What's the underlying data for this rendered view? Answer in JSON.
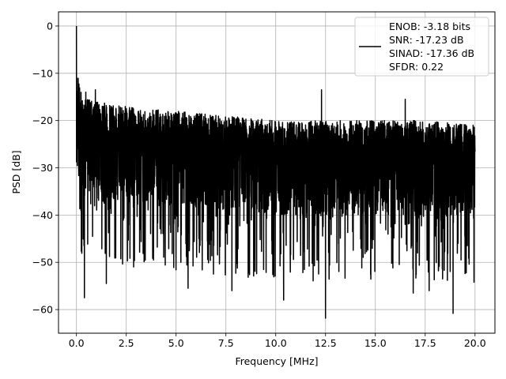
{
  "chart_data": {
    "type": "line",
    "title": "",
    "xlabel": "Frequency [MHz]",
    "ylabel": "PSD [dB]",
    "xlim": [
      -0.9,
      21.0
    ],
    "ylim": [
      -65.0,
      3.0
    ],
    "xticks": [
      0.0,
      2.5,
      5.0,
      7.5,
      10.0,
      12.5,
      15.0,
      17.5,
      20.0
    ],
    "xtick_labels": [
      "0.0",
      "2.5",
      "5.0",
      "7.5",
      "10.0",
      "12.5",
      "15.0",
      "17.5",
      "20.0"
    ],
    "yticks": [
      0,
      -10,
      -20,
      -30,
      -40,
      -50,
      -60
    ],
    "ytick_labels": [
      "0",
      "−10",
      "−20",
      "−30",
      "−40",
      "−50",
      "−60"
    ],
    "grid": true,
    "legend_position": "top-right",
    "series": [
      {
        "color": "#000000",
        "legend_lines": [
          "ENOB: -3.18 bits",
          "SNR: -17.23 dB",
          "SINAD: -17.36 dB",
          "SFDR: 0.22"
        ],
        "x_range": [
          0.0,
          20.0
        ],
        "peak": {
          "x": 0.0,
          "y": 0.0
        },
        "upper_envelope_approx": [
          [
            0.0,
            0.0
          ],
          [
            0.05,
            -10
          ],
          [
            0.3,
            -15
          ],
          [
            1.0,
            -16
          ],
          [
            2.5,
            -17
          ],
          [
            5.0,
            -18
          ],
          [
            7.5,
            -19
          ],
          [
            10.0,
            -20
          ],
          [
            12.5,
            -20
          ],
          [
            15.0,
            -20
          ],
          [
            17.5,
            -20
          ],
          [
            20.0,
            -21
          ]
        ],
        "notable_spikes": [
          [
            0.47,
            -14
          ],
          [
            0.95,
            -13.5
          ],
          [
            12.3,
            -13.5
          ],
          [
            16.5,
            -15.5
          ]
        ],
        "notable_dips": [
          [
            0.4,
            -57.5
          ],
          [
            12.5,
            -61.8
          ],
          [
            18.9,
            -60.8
          ],
          [
            10.4,
            -58
          ],
          [
            7.8,
            -56
          ],
          [
            5.6,
            -55.5
          ],
          [
            1.5,
            -54.5
          ],
          [
            16.9,
            -56.5
          ],
          [
            17.7,
            -56
          ]
        ],
        "noise_floor_band": [
          -40,
          -20
        ],
        "points_approx": 4000
      }
    ]
  }
}
